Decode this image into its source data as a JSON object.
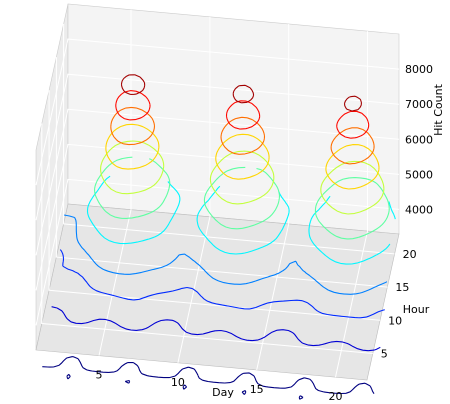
{
  "chart_data": {
    "type": "contour3d",
    "xlabel": "Day",
    "ylabel": "Hour",
    "zlabel": "Hit Count",
    "xlim": [
      1,
      22
    ],
    "ylim": [
      1,
      23
    ],
    "zlim": [
      3300,
      9000
    ],
    "xticks": [
      5,
      10,
      15,
      20
    ],
    "yticks": [
      5,
      10,
      15,
      20
    ],
    "zticks": [
      4000,
      5000,
      6000,
      7000,
      8000
    ],
    "grid": true,
    "colormap": "jet",
    "colormap_range": [
      2000,
      8000
    ],
    "peaks": [
      {
        "day": 5.5,
        "hour": 18,
        "peak": 8400
      },
      {
        "day": 12.5,
        "hour": 18,
        "peak": 8300
      },
      {
        "day": 19.5,
        "hour": 18,
        "peak": 8200
      }
    ],
    "contour_levels": [
      2000,
      2500,
      3000,
      3500,
      4200,
      4800,
      5400,
      6000,
      6600,
      7200,
      7800
    ]
  }
}
